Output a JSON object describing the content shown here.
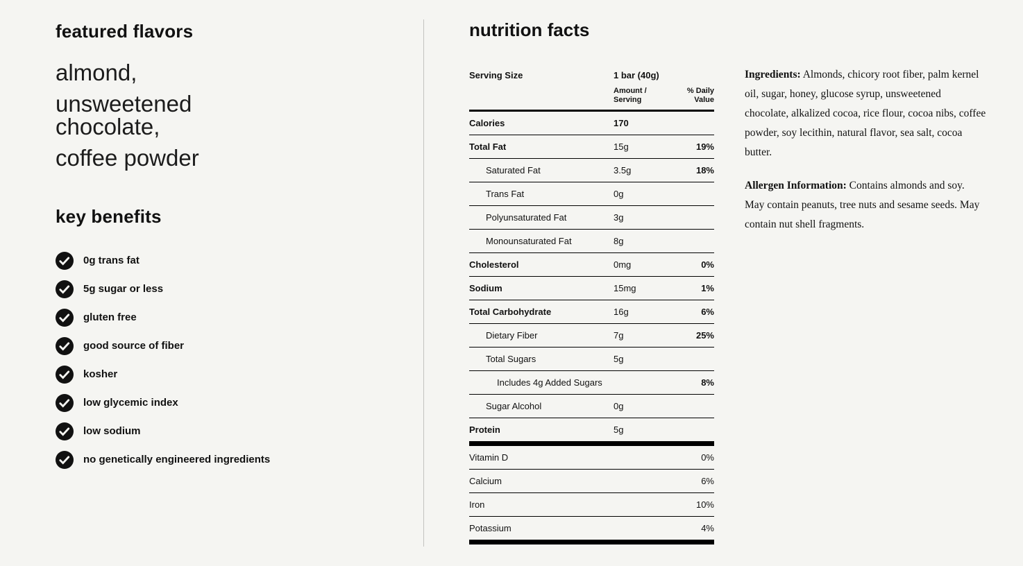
{
  "left": {
    "featured_flavors_title": "featured flavors",
    "flavors": [
      "almond,",
      "unsweetened chocolate,",
      "coffee powder"
    ],
    "key_benefits_title": "key benefits",
    "benefits": [
      "0g trans fat",
      "5g sugar or less",
      "gluten free",
      "good source of fiber",
      "kosher",
      "low glycemic index",
      "low sodium",
      "no genetically engineered ingredients"
    ]
  },
  "nutrition": {
    "title": "nutrition facts",
    "serving_size_label": "Serving Size",
    "serving_size_value": "1 bar (40g)",
    "amount_header": "Amount / Serving",
    "dv_header": "% Daily Value",
    "rows": [
      {
        "label": "Calories",
        "amount": "170",
        "dv": "",
        "indent": 0,
        "bold": true,
        "amount_bold": true
      },
      {
        "label": "Total Fat",
        "amount": "15g",
        "dv": "19%",
        "indent": 0,
        "bold": true
      },
      {
        "label": "Saturated Fat",
        "amount": "3.5g",
        "dv": "18%",
        "indent": 1
      },
      {
        "label": "Trans Fat",
        "amount": "0g",
        "dv": "",
        "indent": 1
      },
      {
        "label": "Polyunsaturated Fat",
        "amount": "3g",
        "dv": "",
        "indent": 1
      },
      {
        "label": "Monounsaturated Fat",
        "amount": "8g",
        "dv": "",
        "indent": 1
      },
      {
        "label": "Cholesterol",
        "amount": "0mg",
        "dv": "0%",
        "indent": 0,
        "bold": true
      },
      {
        "label": "Sodium",
        "amount": "15mg",
        "dv": "1%",
        "indent": 0,
        "bold": true
      },
      {
        "label": "Total Carbohydrate",
        "amount": "16g",
        "dv": "6%",
        "indent": 0,
        "bold": true
      },
      {
        "label": "Dietary Fiber",
        "amount": "7g",
        "dv": "25%",
        "indent": 1
      },
      {
        "label": "Total Sugars",
        "amount": "5g",
        "dv": "",
        "indent": 1
      },
      {
        "label": "Includes 4g Added Sugars",
        "amount": "",
        "dv": "8%",
        "indent": 2
      },
      {
        "label": "Sugar Alcohol",
        "amount": "0g",
        "dv": "",
        "indent": 1
      },
      {
        "label": "Protein",
        "amount": "5g",
        "dv": "",
        "indent": 0,
        "bold": true
      }
    ],
    "vitamins": [
      {
        "label": "Vitamin D",
        "dv": "0%"
      },
      {
        "label": "Calcium",
        "dv": "6%"
      },
      {
        "label": "Iron",
        "dv": "10%"
      },
      {
        "label": "Potassium",
        "dv": "4%"
      }
    ]
  },
  "ingredients": {
    "label": "Ingredients:",
    "text": "Almonds, chicory root fiber, palm kernel oil, sugar, honey, glucose syrup, unsweetened chocolate, alkalized cocoa, rice flour, cocoa nibs, coffee powder, soy lecithin, natural flavor, sea salt, cocoa butter."
  },
  "allergen": {
    "label": "Allergen Information:",
    "text": "Contains almonds and soy. May contain peanuts, tree nuts and sesame seeds. May contain nut shell fragments."
  }
}
